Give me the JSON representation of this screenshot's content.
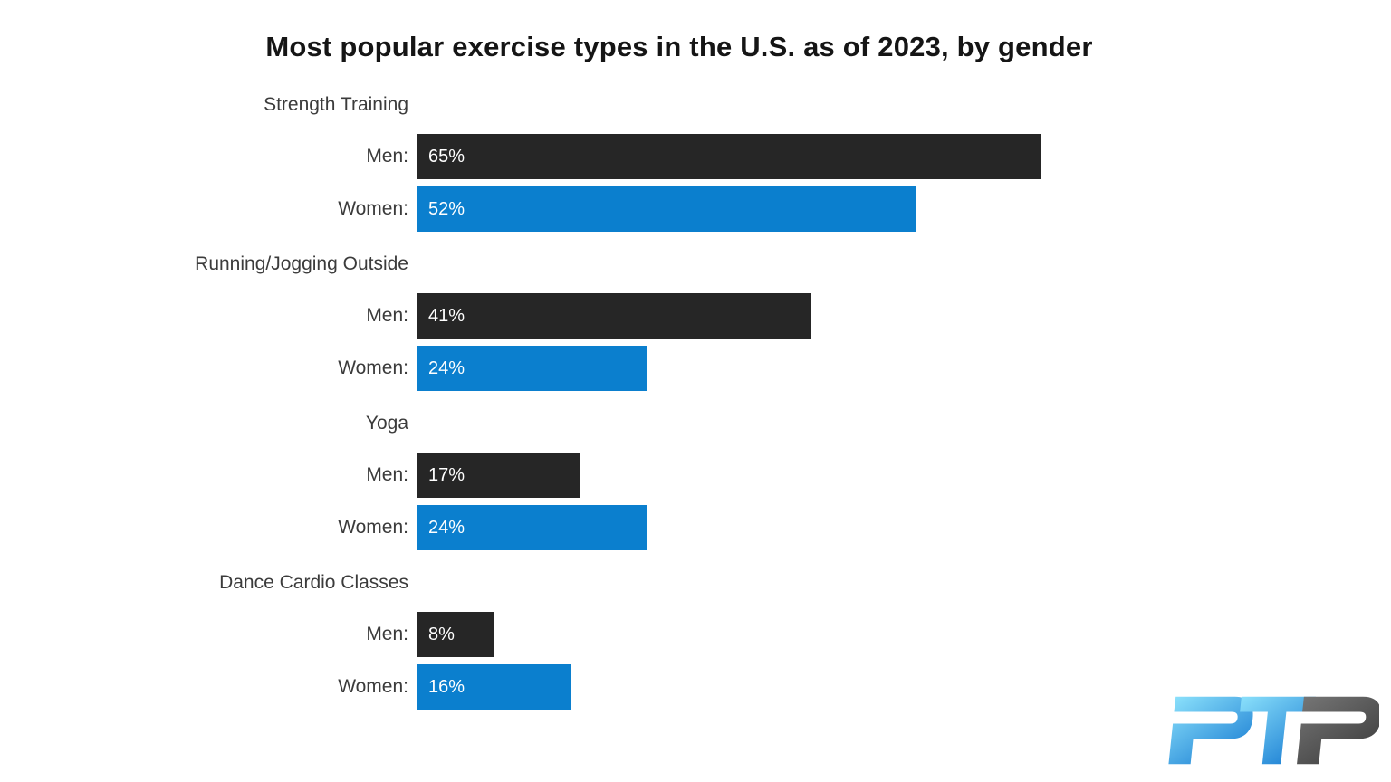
{
  "chart_data": {
    "type": "bar",
    "orientation": "horizontal",
    "title": "Most popular exercise types in the U.S. as of 2023, by gender",
    "categories": [
      "Strength Training",
      "Running/Jogging Outside",
      "Yoga",
      "Dance Cardio Classes"
    ],
    "series": [
      {
        "name": "Men",
        "row_label": "Men:",
        "color": "#262626",
        "values": [
          65,
          41,
          17,
          8
        ]
      },
      {
        "name": "Women",
        "row_label": "Women:",
        "color": "#0b7fce",
        "values": [
          52,
          24,
          24,
          16
        ]
      }
    ],
    "value_suffix": "%",
    "xlim": [
      0,
      100
    ],
    "grid": false,
    "legend_position": "none",
    "value_label_position": "inside-start",
    "value_label_color": "#ffffff"
  },
  "colors": {
    "background": "#ffffff",
    "title_text": "#151515",
    "label_text": "#3b3b3b",
    "men_bar": "#262626",
    "women_bar": "#0b7fce"
  },
  "logo": {
    "text": "PTP",
    "blue_letters": "PT",
    "gray_letters": "P",
    "blue_gradient": [
      "#8ae0fb",
      "#1b7ed3"
    ],
    "gray_gradient": [
      "#757575",
      "#3d3d3d"
    ]
  }
}
